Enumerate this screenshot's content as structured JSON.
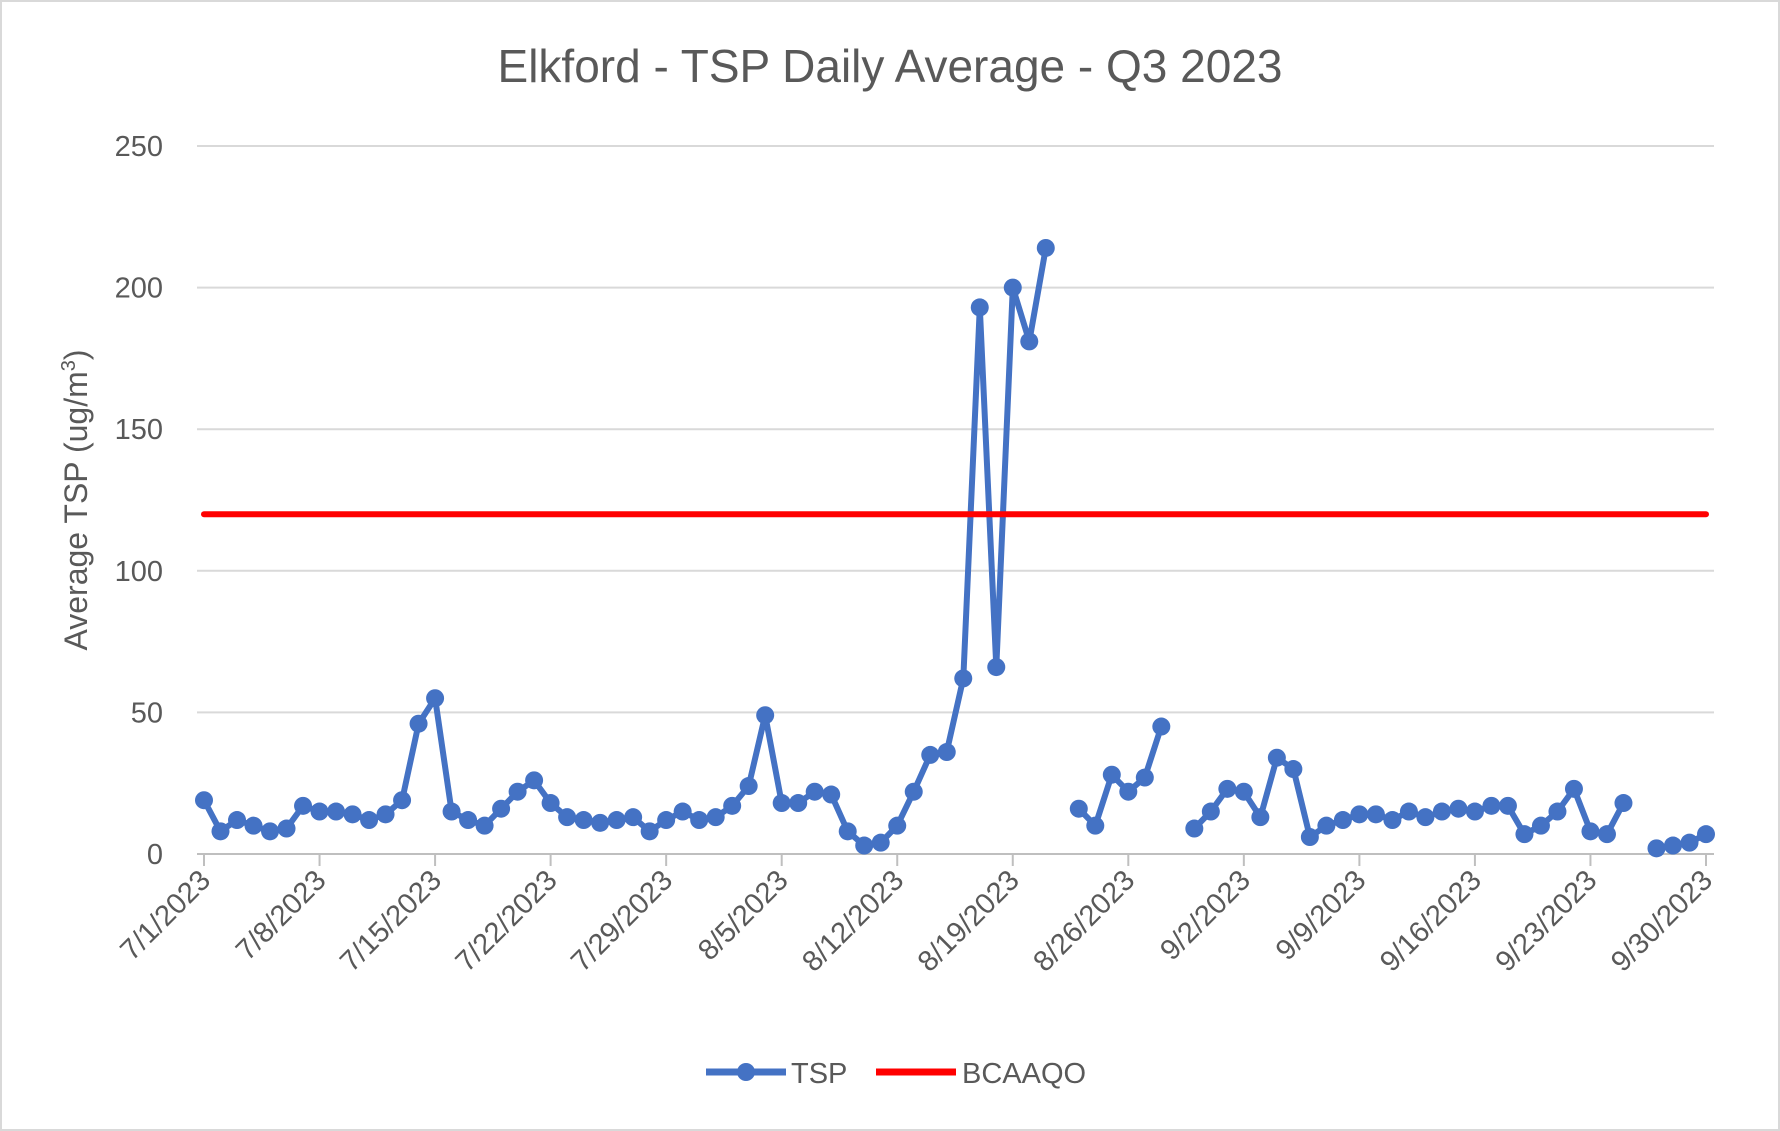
{
  "chart_data": {
    "type": "line",
    "title": "Elkford - TSP Daily Average - Q3 2023",
    "ylabel": "Average TSP (ug/m",
    "ylabel_superscript": "3",
    "ylabel_suffix": ")",
    "ylim": [
      0,
      250
    ],
    "yticks": [
      0,
      50,
      100,
      150,
      200,
      250
    ],
    "grid": true,
    "legend_position": "bottom",
    "x_range": [
      "7/1/2023",
      "9/30/2023"
    ],
    "xticks": [
      "7/1/2023",
      "7/8/2023",
      "7/15/2023",
      "7/22/2023",
      "7/29/2023",
      "8/5/2023",
      "8/12/2023",
      "8/19/2023",
      "8/26/2023",
      "9/2/2023",
      "9/9/2023",
      "9/16/2023",
      "9/23/2023",
      "9/30/2023"
    ],
    "colors": {
      "TSP": "#4472C4",
      "BCAAQO": "#FF0000"
    },
    "series": [
      {
        "name": "TSP",
        "marker": "circle",
        "x": [
          "7/1/2023",
          "7/2/2023",
          "7/3/2023",
          "7/4/2023",
          "7/5/2023",
          "7/6/2023",
          "7/7/2023",
          "7/8/2023",
          "7/9/2023",
          "7/10/2023",
          "7/11/2023",
          "7/12/2023",
          "7/13/2023",
          "7/14/2023",
          "7/15/2023",
          "7/16/2023",
          "7/17/2023",
          "7/18/2023",
          "7/19/2023",
          "7/20/2023",
          "7/21/2023",
          "7/22/2023",
          "7/23/2023",
          "7/24/2023",
          "7/25/2023",
          "7/26/2023",
          "7/27/2023",
          "7/28/2023",
          "7/29/2023",
          "7/30/2023",
          "7/31/2023",
          "8/1/2023",
          "8/2/2023",
          "8/3/2023",
          "8/4/2023",
          "8/5/2023",
          "8/6/2023",
          "8/7/2023",
          "8/8/2023",
          "8/9/2023",
          "8/10/2023",
          "8/11/2023",
          "8/12/2023",
          "8/13/2023",
          "8/14/2023",
          "8/15/2023",
          "8/16/2023",
          "8/17/2023",
          "8/18/2023",
          "8/19/2023",
          "8/20/2023",
          "8/21/2023",
          "8/22/2023",
          "8/23/2023",
          "8/24/2023",
          "8/25/2023",
          "8/26/2023",
          "8/27/2023",
          "8/28/2023",
          "8/29/2023",
          "8/30/2023",
          "8/31/2023",
          "9/1/2023",
          "9/2/2023",
          "9/3/2023",
          "9/4/2023",
          "9/5/2023",
          "9/6/2023",
          "9/7/2023",
          "9/8/2023",
          "9/9/2023",
          "9/10/2023",
          "9/11/2023",
          "9/12/2023",
          "9/13/2023",
          "9/14/2023",
          "9/15/2023",
          "9/16/2023",
          "9/17/2023",
          "9/18/2023",
          "9/19/2023",
          "9/20/2023",
          "9/21/2023",
          "9/22/2023",
          "9/23/2023",
          "9/24/2023",
          "9/25/2023",
          "9/26/2023",
          "9/27/2023",
          "9/28/2023",
          "9/29/2023",
          "9/30/2023"
        ],
        "values": [
          19,
          8,
          12,
          10,
          8,
          9,
          17,
          15,
          15,
          14,
          12,
          14,
          19,
          46,
          55,
          15,
          12,
          10,
          16,
          22,
          26,
          18,
          13,
          12,
          11,
          12,
          13,
          8,
          12,
          15,
          12,
          13,
          17,
          24,
          49,
          18,
          18,
          22,
          21,
          8,
          3,
          4,
          10,
          22,
          35,
          36,
          62,
          193,
          66,
          200,
          181,
          214,
          null,
          16,
          10,
          28,
          22,
          27,
          45,
          null,
          9,
          15,
          23,
          22,
          13,
          34,
          30,
          6,
          10,
          12,
          14,
          14,
          12,
          15,
          13,
          15,
          16,
          15,
          17,
          17,
          7,
          10,
          15,
          23,
          8,
          7,
          18,
          null,
          2,
          3,
          4,
          7
        ]
      },
      {
        "name": "BCAAQO",
        "marker": "none",
        "x": [
          "7/1/2023",
          "9/30/2023"
        ],
        "values": [
          120,
          120
        ]
      }
    ]
  }
}
